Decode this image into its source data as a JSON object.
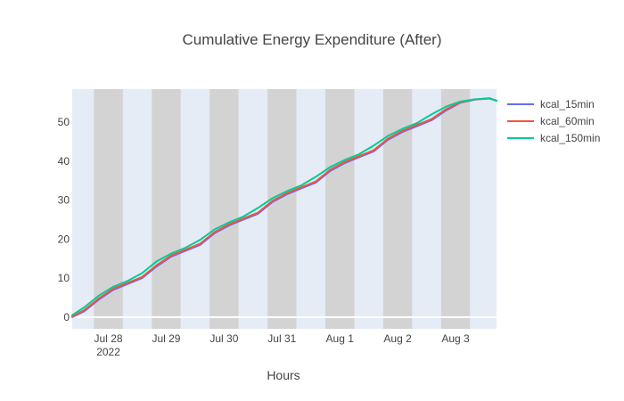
{
  "chart_data": {
    "type": "line",
    "title": "Cumulative Energy Expenditure (After)",
    "xlabel": "Hours",
    "ylabel": "",
    "x_range": [
      "2022-07-27T09:00",
      "2022-08-03T17:00"
    ],
    "ylim": [
      -3,
      58.5
    ],
    "x_ticks": [
      {
        "x": "2022-07-28T00:00",
        "label": "Jul 28",
        "sublabel": "2022"
      },
      {
        "x": "2022-07-29T00:00",
        "label": "Jul 29",
        "sublabel": ""
      },
      {
        "x": "2022-07-30T00:00",
        "label": "Jul 30",
        "sublabel": ""
      },
      {
        "x": "2022-07-31T00:00",
        "label": "Jul 31",
        "sublabel": ""
      },
      {
        "x": "2022-08-01T00:00",
        "label": "Aug 1",
        "sublabel": ""
      },
      {
        "x": "2022-08-02T00:00",
        "label": "Aug 2",
        "sublabel": ""
      },
      {
        "x": "2022-08-03T00:00",
        "label": "Aug 3",
        "sublabel": ""
      }
    ],
    "y_ticks": [
      {
        "y": 0,
        "label": "0"
      },
      {
        "y": 10,
        "label": "10"
      },
      {
        "y": 20,
        "label": "20"
      },
      {
        "y": 30,
        "label": "30"
      },
      {
        "y": 40,
        "label": "40"
      },
      {
        "y": 50,
        "label": "50"
      }
    ],
    "dark_bands": [
      [
        "2022-07-27T18:00",
        "2022-07-28T06:00"
      ],
      [
        "2022-07-28T18:00",
        "2022-07-29T06:00"
      ],
      [
        "2022-07-29T18:00",
        "2022-07-30T06:00"
      ],
      [
        "2022-07-30T18:00",
        "2022-07-31T06:00"
      ],
      [
        "2022-07-31T18:00",
        "2022-08-01T06:00"
      ],
      [
        "2022-08-01T18:00",
        "2022-08-02T06:00"
      ],
      [
        "2022-08-02T18:00",
        "2022-08-03T06:00"
      ]
    ],
    "colors": {
      "light_band": "#e5ecf6",
      "dark_band": "#d3d3d3",
      "zero_line": "#ffffff"
    },
    "legend_position": "top-right",
    "series": [
      {
        "name": "kcal_15min",
        "color": "#636efa",
        "x": [
          "2022-07-27T09:00",
          "2022-07-27T14:00",
          "2022-07-27T20:00",
          "2022-07-28T02:00",
          "2022-07-28T08:00",
          "2022-07-28T14:00",
          "2022-07-28T20:00",
          "2022-07-29T02:00",
          "2022-07-29T08:00",
          "2022-07-29T14:00",
          "2022-07-29T20:00",
          "2022-07-30T02:00",
          "2022-07-30T08:00",
          "2022-07-30T14:00",
          "2022-07-30T20:00",
          "2022-07-31T02:00",
          "2022-07-31T08:00",
          "2022-07-31T14:00",
          "2022-07-31T20:00",
          "2022-08-01T02:00",
          "2022-08-01T08:00",
          "2022-08-01T14:00",
          "2022-08-01T20:00",
          "2022-08-02T02:00",
          "2022-08-02T08:00",
          "2022-08-02T14:00",
          "2022-08-02T20:00",
          "2022-08-03T02:00",
          "2022-08-03T08:00",
          "2022-08-03T14:00",
          "2022-08-03T17:00"
        ],
        "y": [
          0.0,
          1.5,
          4.5,
          7.0,
          8.5,
          10.0,
          13.0,
          15.5,
          17.0,
          18.5,
          21.5,
          23.5,
          25.0,
          26.5,
          29.5,
          31.5,
          33.0,
          34.5,
          37.5,
          39.5,
          41.0,
          42.5,
          45.5,
          47.5,
          49.0,
          50.5,
          53.0,
          55.0,
          55.8,
          56.2,
          55.5
        ]
      },
      {
        "name": "kcal_60min",
        "color": "#ef553b",
        "x": [
          "2022-07-27T09:00",
          "2022-07-27T14:00",
          "2022-07-27T20:00",
          "2022-07-28T02:00",
          "2022-07-28T08:00",
          "2022-07-28T14:00",
          "2022-07-28T20:00",
          "2022-07-29T02:00",
          "2022-07-29T08:00",
          "2022-07-29T14:00",
          "2022-07-29T20:00",
          "2022-07-30T02:00",
          "2022-07-30T08:00",
          "2022-07-30T14:00",
          "2022-07-30T20:00",
          "2022-07-31T02:00",
          "2022-07-31T08:00",
          "2022-07-31T14:00",
          "2022-07-31T20:00",
          "2022-08-01T02:00",
          "2022-08-01T08:00",
          "2022-08-01T14:00",
          "2022-08-01T20:00",
          "2022-08-02T02:00",
          "2022-08-02T08:00",
          "2022-08-02T14:00",
          "2022-08-02T20:00",
          "2022-08-03T02:00",
          "2022-08-03T08:00",
          "2022-08-03T14:00",
          "2022-08-03T17:00"
        ],
        "y": [
          0.1,
          1.8,
          4.8,
          7.3,
          8.8,
          10.3,
          13.3,
          15.8,
          17.3,
          18.8,
          21.8,
          23.8,
          25.3,
          26.8,
          29.8,
          31.8,
          33.3,
          34.8,
          37.8,
          39.8,
          41.3,
          42.8,
          45.8,
          47.8,
          49.3,
          50.8,
          53.3,
          55.1,
          55.8,
          56.1,
          55.5
        ]
      },
      {
        "name": "kcal_150min",
        "color": "#00cc96",
        "x": [
          "2022-07-27T09:00",
          "2022-07-27T14:00",
          "2022-07-27T20:00",
          "2022-07-28T02:00",
          "2022-07-28T08:00",
          "2022-07-28T14:00",
          "2022-07-28T20:00",
          "2022-07-29T02:00",
          "2022-07-29T08:00",
          "2022-07-29T14:00",
          "2022-07-29T20:00",
          "2022-07-30T02:00",
          "2022-07-30T08:00",
          "2022-07-30T14:00",
          "2022-07-30T20:00",
          "2022-07-31T02:00",
          "2022-07-31T08:00",
          "2022-07-31T14:00",
          "2022-07-31T20:00",
          "2022-08-01T02:00",
          "2022-08-01T08:00",
          "2022-08-01T14:00",
          "2022-08-01T20:00",
          "2022-08-02T02:00",
          "2022-08-02T08:00",
          "2022-08-02T14:00",
          "2022-08-02T20:00",
          "2022-08-03T02:00",
          "2022-08-03T08:00",
          "2022-08-03T14:00",
          "2022-08-03T17:00"
        ],
        "y": [
          0.5,
          2.5,
          5.5,
          7.8,
          9.3,
          11.3,
          14.3,
          16.3,
          17.8,
          19.8,
          22.5,
          24.3,
          25.8,
          28.0,
          30.5,
          32.3,
          33.8,
          36.0,
          38.5,
          40.3,
          41.8,
          44.0,
          46.5,
          48.3,
          49.8,
          52.0,
          54.0,
          55.3,
          55.9,
          56.1,
          55.6
        ]
      }
    ]
  }
}
